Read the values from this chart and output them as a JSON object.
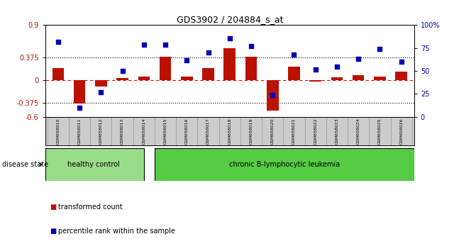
{
  "title": "GDS3902 / 204884_s_at",
  "samples": [
    "GSM658010",
    "GSM658011",
    "GSM658012",
    "GSM658013",
    "GSM658014",
    "GSM658015",
    "GSM658016",
    "GSM658017",
    "GSM658018",
    "GSM658019",
    "GSM658020",
    "GSM658021",
    "GSM658022",
    "GSM658023",
    "GSM658024",
    "GSM658025",
    "GSM658026"
  ],
  "transformed_count": [
    0.2,
    -0.38,
    -0.1,
    0.04,
    0.06,
    0.38,
    0.06,
    0.2,
    0.52,
    0.38,
    -0.5,
    0.22,
    -0.02,
    0.05,
    0.08,
    0.06,
    0.14
  ],
  "percentile_rank": [
    82,
    10,
    27,
    50,
    79,
    79,
    62,
    70,
    86,
    77,
    24,
    68,
    52,
    55,
    63,
    74,
    60
  ],
  "healthy_control_count": 5,
  "ylim_left": [
    -0.6,
    0.9
  ],
  "ylim_right": [
    0,
    100
  ],
  "yticks_left": [
    -0.6,
    -0.375,
    0,
    0.375,
    0.9
  ],
  "ytick_labels_left": [
    "-0.6",
    "-0.375",
    "0",
    "0.375",
    "0.9"
  ],
  "yticks_right": [
    0,
    25,
    50,
    75,
    100
  ],
  "ytick_labels_right": [
    "0",
    "25",
    "50",
    "75",
    "100%"
  ],
  "hline_values": [
    0.375,
    -0.375
  ],
  "bar_color": "#BB1100",
  "dot_color": "#0000BB",
  "background_color": "#FFFFFF",
  "healthy_label": "healthy control",
  "disease_label": "chronic B-lymphocytic leukemia",
  "disease_state_label": "disease state",
  "legend_bar_label": "transformed count",
  "legend_dot_label": "percentile rank within the sample",
  "healthy_bg": "#99DD88",
  "disease_bg": "#55CC44",
  "label_area_bg": "#CCCCCC",
  "zero_line_color": "#CC1100",
  "dotted_line_color": "#000000"
}
